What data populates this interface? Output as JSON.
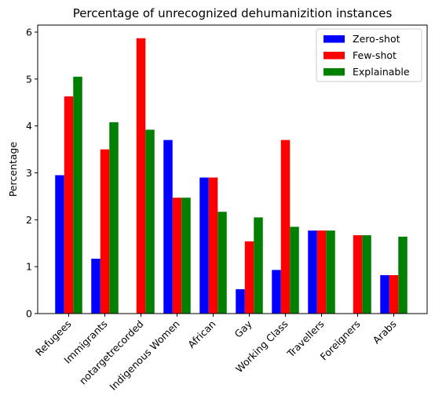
{
  "chart_data": {
    "type": "bar",
    "title": "Percentage of unrecognized dehumanizition instances",
    "xlabel": "",
    "ylabel": "Percentage",
    "ylim": [
      0,
      6.15
    ],
    "yticks": [
      0,
      1,
      2,
      3,
      4,
      5,
      6
    ],
    "grid": false,
    "legend_position": "top-right",
    "categories": [
      "Refugees",
      "Immigrants",
      "notargetrecorded",
      "Indigenous Women",
      "African",
      "Gay",
      "Working Class",
      "Travellers",
      "Foreigners",
      "Arabs"
    ],
    "series": [
      {
        "name": "Zero-shot",
        "color": "#0000ff",
        "values": [
          2.95,
          1.17,
          0.0,
          3.7,
          2.9,
          0.52,
          0.93,
          1.77,
          0.0,
          0.82
        ]
      },
      {
        "name": "Few-shot",
        "color": "#ff0000",
        "values": [
          4.63,
          3.5,
          5.87,
          2.47,
          2.9,
          1.54,
          3.7,
          1.77,
          1.67,
          0.82
        ]
      },
      {
        "name": "Explainable",
        "color": "#008000",
        "values": [
          5.05,
          4.08,
          3.92,
          2.47,
          2.17,
          2.05,
          1.85,
          1.77,
          1.67,
          1.64
        ]
      }
    ]
  }
}
